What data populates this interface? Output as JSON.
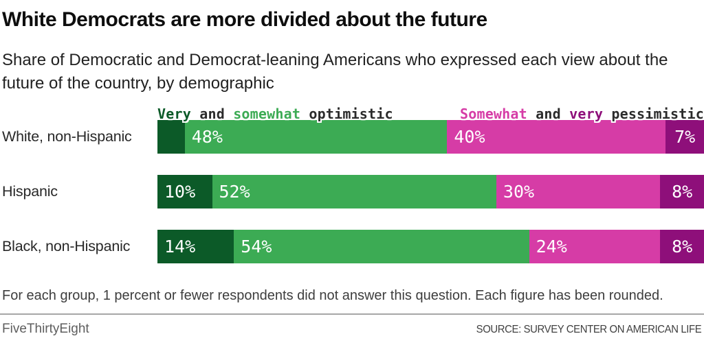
{
  "header": {
    "title": "White Democrats are more divided about the future",
    "subtitle": "Share of Democratic and Democrat-leaning Americans who expressed each view about the future of the country, by demographic"
  },
  "legend": {
    "optimistic_parts": [
      {
        "text": "Very",
        "color": "#0c5a28"
      },
      {
        "text": " and ",
        "color": "#2b2b2b"
      },
      {
        "text": "somewhat",
        "color": "#3cab54"
      },
      {
        "text": " optimistic",
        "color": "#2b2b2b"
      }
    ],
    "pessimistic_parts": [
      {
        "text": "Somewhat",
        "color": "#d63ca6"
      },
      {
        "text": " and ",
        "color": "#2b2b2b"
      },
      {
        "text": "very",
        "color": "#8e0f7a"
      },
      {
        "text": " pessimistic",
        "color": "#2b2b2b"
      }
    ]
  },
  "chart_data": {
    "type": "bar",
    "stacked": true,
    "orientation": "horizontal",
    "xlim": [
      0,
      100
    ],
    "unit": "%",
    "categories": [
      "White, non-Hispanic",
      "Hispanic",
      "Black, non-Hispanic"
    ],
    "series": [
      {
        "name": "Very optimistic",
        "color": "#0c5a28",
        "values": [
          5,
          10,
          14
        ],
        "value_labels": [
          "",
          "10%",
          "14%"
        ]
      },
      {
        "name": "Somewhat optimistic",
        "color": "#3cab54",
        "values": [
          48,
          52,
          54
        ],
        "value_labels": [
          "48%",
          "52%",
          "54%"
        ]
      },
      {
        "name": "Somewhat pessimistic",
        "color": "#d63ca6",
        "values": [
          40,
          30,
          24
        ],
        "value_labels": [
          "40%",
          "30%",
          "24%"
        ]
      },
      {
        "name": "Very pessimistic",
        "color": "#8e0f7a",
        "values": [
          7,
          8,
          8
        ],
        "value_labels": [
          "7%",
          "8%",
          "8%"
        ]
      }
    ]
  },
  "footnote": "For each group, 1 percent or fewer respondents did not answer this question. Each figure has been rounded.",
  "footer": {
    "brand": "FiveThirtyEight",
    "source": "SOURCE: SURVEY CENTER ON AMERICAN LIFE"
  }
}
